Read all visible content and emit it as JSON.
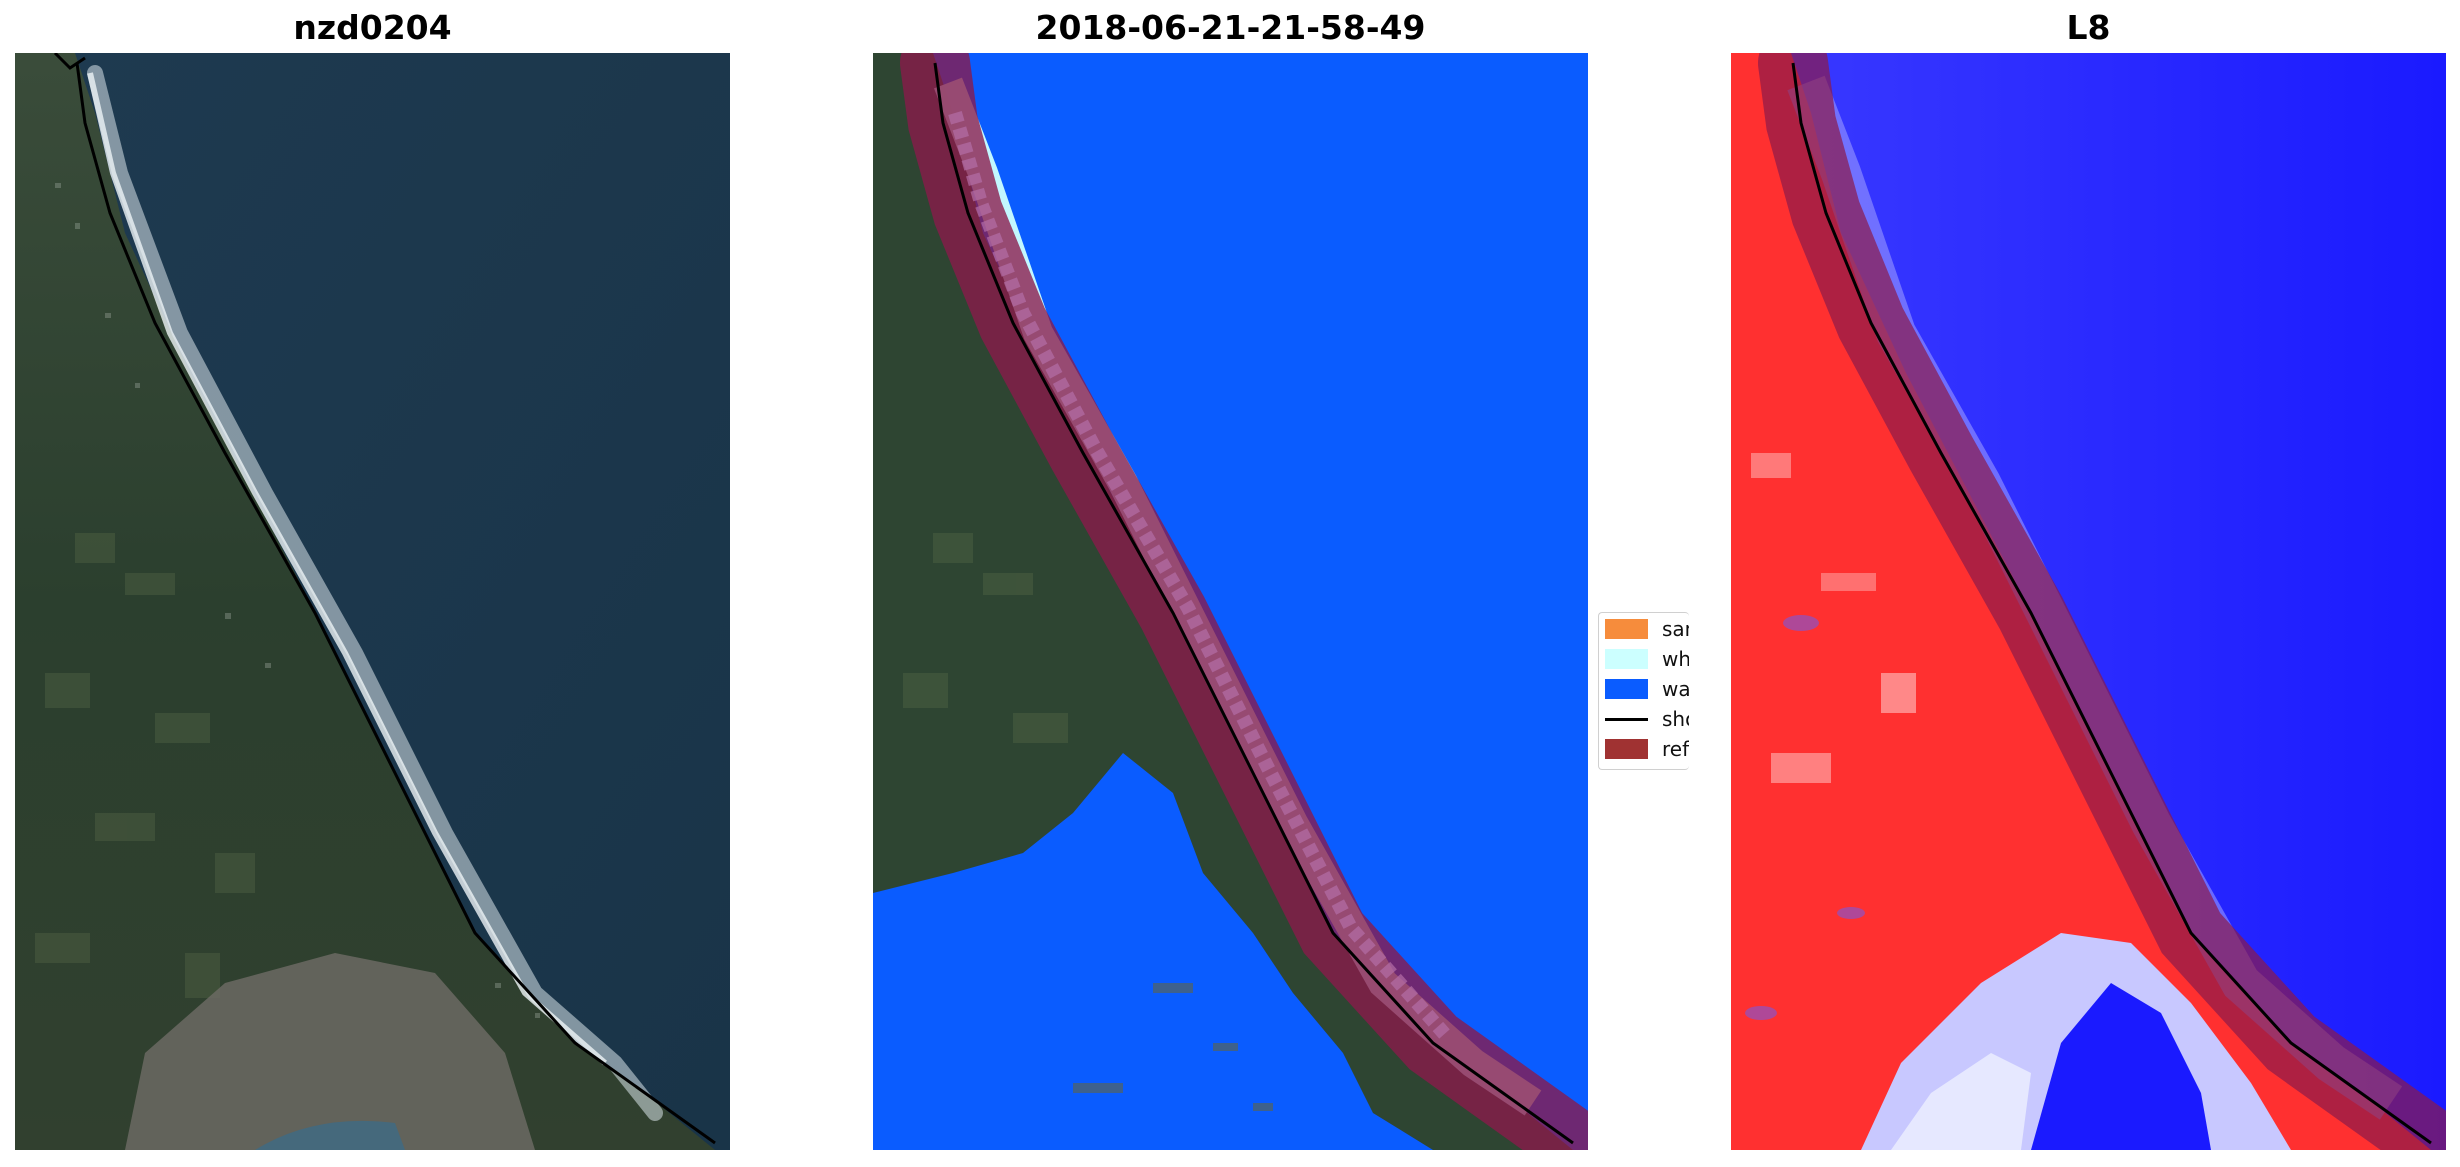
{
  "panels": [
    {
      "title": "nzd0204",
      "content": "satellite RGB image of coastline"
    },
    {
      "title": "2018-06-21-21-58-49",
      "content": "classified image"
    },
    {
      "title": "L8",
      "content": "MNDWI index image"
    }
  ],
  "legend": {
    "items": [
      {
        "label": "sand",
        "color": "#f68c3c",
        "kind": "patch"
      },
      {
        "label": "whitewater",
        "color": "#ccffff",
        "kind": "patch"
      },
      {
        "label": "water",
        "color": "#0a5cff",
        "kind": "patch"
      },
      {
        "label": "shoreline",
        "color": "#000000",
        "kind": "line"
      },
      {
        "label": "reference shoreline buffer",
        "color": "#a03232",
        "kind": "patch"
      }
    ]
  },
  "colors": {
    "ocean": "#1d3b52",
    "land": "#2f4a33",
    "water_class": "#0a5cff",
    "whitewater": "#ccffff",
    "buffer_overlay": "#8b1a4a",
    "index_positive": "#ff2020",
    "index_negative": "#1a1aff"
  }
}
